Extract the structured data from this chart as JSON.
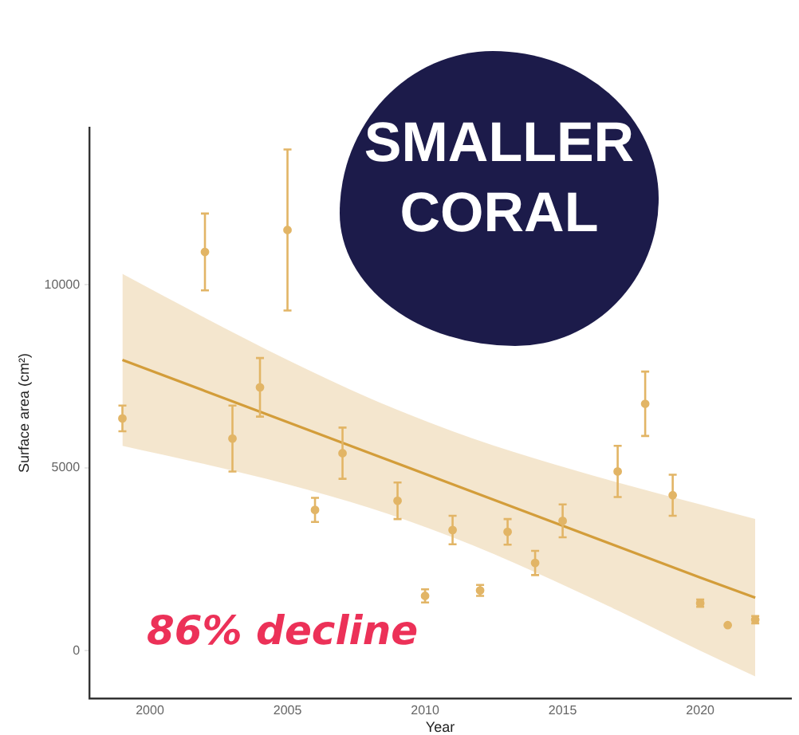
{
  "chart_data": {
    "type": "scatter",
    "xlabel": "Year",
    "ylabel": "Surface area (cm²)",
    "annotations": [
      "86% decline",
      "SMALLER CORAL"
    ],
    "xlim": [
      1997.8,
      2023.3
    ],
    "xticks": [
      2000,
      2005,
      2010,
      2015,
      2020
    ],
    "ylim": [
      -1300,
      14300
    ],
    "yticks": [
      0,
      5000,
      10000
    ],
    "grid": false,
    "legend": false,
    "series": [
      {
        "type": "scatter",
        "marker": "circle",
        "color": "#e2b566",
        "x": [
          1999,
          2002,
          2003,
          2004,
          2005,
          2006,
          2007,
          2009,
          2010,
          2011,
          2012,
          2013,
          2014,
          2015,
          2017,
          2018,
          2019,
          2020,
          2021,
          2022
        ],
        "values": [
          6350,
          10900,
          5800,
          7200,
          11500,
          3850,
          5400,
          4100,
          1500,
          3300,
          1650,
          3250,
          2400,
          3550,
          4900,
          6750,
          4250,
          1300,
          700,
          850
        ],
        "errors": [
          350,
          1050,
          900,
          800,
          2200,
          330,
          700,
          500,
          180,
          390,
          150,
          350,
          330,
          450,
          700,
          880,
          560,
          100,
          null,
          100
        ]
      },
      {
        "type": "line",
        "color": "#d39d3a",
        "x": [
          1999,
          2002,
          2005,
          2008,
          2011,
          2014,
          2017,
          2020,
          2022
        ],
        "values": [
          7950,
          7100,
          6250,
          5400,
          4550,
          3700,
          2850,
          2000,
          1450
        ],
        "lower": [
          5600,
          5100,
          4550,
          3900,
          3100,
          2150,
          1100,
          0,
          -700
        ],
        "upper": [
          10300,
          9100,
          7950,
          6900,
          6000,
          5250,
          4600,
          4000,
          3600
        ]
      }
    ]
  }
}
